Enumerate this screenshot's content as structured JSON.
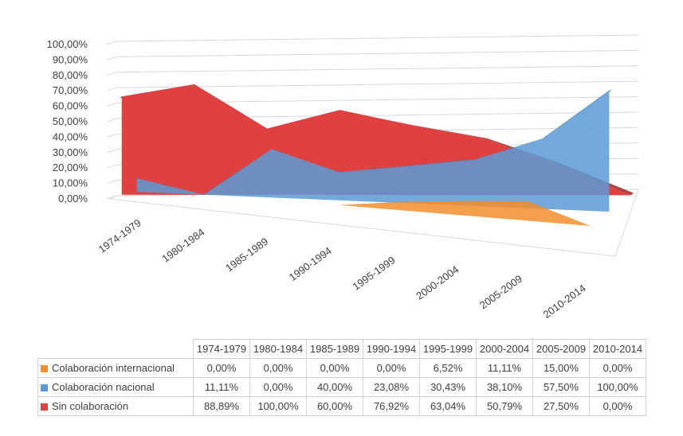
{
  "chart_data": {
    "type": "area",
    "is_3d": true,
    "categories": [
      "1974-1979",
      "1980-1984",
      "1985-1989",
      "1990-1994",
      "1995-1999",
      "2000-2004",
      "2005-2009",
      "2010-2014"
    ],
    "y_ticks": [
      "0,00%",
      "10,00%",
      "20,00%",
      "30,00%",
      "40,00%",
      "50,00%",
      "60,00%",
      "70,00%",
      "80,00%",
      "90,00%",
      "100,00%"
    ],
    "ylim": [
      0,
      100
    ],
    "grid": true,
    "legend": "data-table",
    "series": [
      {
        "name": "Colaboración internacional",
        "color": "#F28E2B",
        "values": [
          0,
          0,
          0,
          0,
          6.52,
          11.11,
          15,
          0
        ],
        "labels": [
          "0,00%",
          "0,00%",
          "0,00%",
          "0,00%",
          "6,52%",
          "11,11%",
          "15,00%",
          "0,00%"
        ]
      },
      {
        "name": "Colaboración nacional",
        "color": "#5B9BD5",
        "values": [
          11.11,
          0,
          40,
          23.08,
          30.43,
          38.1,
          57.5,
          100
        ],
        "labels": [
          "11,11%",
          "0,00%",
          "40,00%",
          "23,08%",
          "30,43%",
          "38,10%",
          "57,50%",
          "100,00%"
        ]
      },
      {
        "name": "Sin colaboración",
        "color": "#E04040",
        "values": [
          88.89,
          100,
          60,
          76.92,
          63.04,
          50.79,
          27.5,
          0
        ],
        "labels": [
          "88,89%",
          "100,00%",
          "60,00%",
          "76,92%",
          "63,04%",
          "50,79%",
          "27,50%",
          "0,00%"
        ]
      }
    ]
  },
  "table": {
    "headers": [
      "1974-1979",
      "1980-1984",
      "1985-1989",
      "1990-1994",
      "1995-1999",
      "2000-2004",
      "2005-2009",
      "2010-2014"
    ]
  }
}
